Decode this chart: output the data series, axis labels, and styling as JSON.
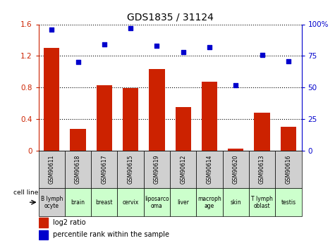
{
  "title": "GDS1835 / 31124",
  "samples": [
    "GSM90611",
    "GSM90618",
    "GSM90617",
    "GSM90615",
    "GSM90619",
    "GSM90612",
    "GSM90614",
    "GSM90620",
    "GSM90613",
    "GSM90616"
  ],
  "cell_types": [
    "B lymph\nocyte",
    "brain",
    "breast",
    "cervix",
    "liposarco\noma",
    "liver",
    "macroph\nage",
    "skin",
    "T lymph\noblast",
    "testis"
  ],
  "log2_ratio": [
    1.3,
    0.28,
    0.83,
    0.79,
    1.03,
    0.55,
    0.87,
    0.03,
    0.48,
    0.3
  ],
  "percentile_rank": [
    96,
    70,
    84,
    97,
    83,
    78,
    82,
    52,
    76,
    71
  ],
  "bar_color": "#cc2200",
  "dot_color": "#0000cc",
  "ylim_left": [
    0,
    1.6
  ],
  "ylim_right": [
    0,
    100
  ],
  "yticks_left": [
    0,
    0.4,
    0.8,
    1.2,
    1.6
  ],
  "yticks_right": [
    0,
    25,
    50,
    75,
    100
  ],
  "ytick_labels_left": [
    "0",
    "0.4",
    "0.8",
    "1.2",
    "1.6"
  ],
  "ytick_labels_right": [
    "0",
    "25",
    "50",
    "75",
    "100%"
  ],
  "sample_bg_color": "#d0d0d0",
  "cell_bg_colors": [
    "#d0d0d0",
    "#ccffcc",
    "#ccffcc",
    "#ccffcc",
    "#ccffcc",
    "#ccffcc",
    "#ccffcc",
    "#ccffcc",
    "#ccffcc",
    "#ccffcc"
  ],
  "legend_red_label": "log2 ratio",
  "legend_blue_label": "percentile rank within the sample",
  "cell_line_label": "cell line",
  "bg_color": "white",
  "bar_width": 0.6
}
